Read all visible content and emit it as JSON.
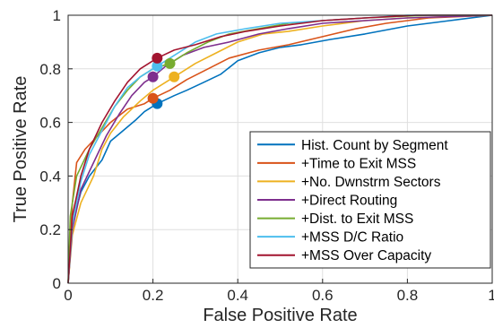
{
  "chart_data": {
    "type": "line",
    "xlabel": "False Positive Rate",
    "ylabel": "True Positive Rate",
    "xlim": [
      0,
      1
    ],
    "ylim": [
      0,
      1
    ],
    "xticks": [
      "0",
      "0.2",
      "0.4",
      "0.6",
      "0.8",
      "1"
    ],
    "yticks": [
      "0",
      "0.2",
      "0.4",
      "0.6",
      "0.8",
      "1"
    ],
    "grid": true,
    "legend_position": "bottom-right",
    "series": [
      {
        "name": "Hist. Count by Segment",
        "color": "#0072BD",
        "point": [
          0.21,
          0.67
        ],
        "values": [
          [
            0,
            0
          ],
          [
            0.01,
            0.22
          ],
          [
            0.03,
            0.34
          ],
          [
            0.05,
            0.4
          ],
          [
            0.08,
            0.46
          ],
          [
            0.1,
            0.53
          ],
          [
            0.13,
            0.57
          ],
          [
            0.16,
            0.61
          ],
          [
            0.18,
            0.64
          ],
          [
            0.21,
            0.67
          ],
          [
            0.25,
            0.7
          ],
          [
            0.28,
            0.72
          ],
          [
            0.32,
            0.75
          ],
          [
            0.36,
            0.78
          ],
          [
            0.4,
            0.83
          ],
          [
            0.45,
            0.86
          ],
          [
            0.5,
            0.88
          ],
          [
            0.55,
            0.89
          ],
          [
            0.62,
            0.91
          ],
          [
            0.7,
            0.93
          ],
          [
            0.8,
            0.96
          ],
          [
            0.9,
            0.98
          ],
          [
            1,
            1
          ]
        ]
      },
      {
        "name": "+Time to Exit MSS",
        "color": "#D95319",
        "point": [
          0.2,
          0.69
        ],
        "values": [
          [
            0,
            0
          ],
          [
            0.01,
            0.3
          ],
          [
            0.02,
            0.45
          ],
          [
            0.04,
            0.5
          ],
          [
            0.07,
            0.55
          ],
          [
            0.1,
            0.6
          ],
          [
            0.14,
            0.65
          ],
          [
            0.18,
            0.67
          ],
          [
            0.2,
            0.69
          ],
          [
            0.24,
            0.72
          ],
          [
            0.28,
            0.76
          ],
          [
            0.33,
            0.8
          ],
          [
            0.38,
            0.84
          ],
          [
            0.45,
            0.87
          ],
          [
            0.52,
            0.89
          ],
          [
            0.6,
            0.92
          ],
          [
            0.68,
            0.95
          ],
          [
            0.75,
            0.97
          ],
          [
            0.85,
            0.99
          ],
          [
            1,
            1
          ]
        ]
      },
      {
        "name": "+No. Dwnstrm Sectors",
        "color": "#EDB120",
        "point": [
          0.25,
          0.77
        ],
        "values": [
          [
            0,
            0
          ],
          [
            0.01,
            0.18
          ],
          [
            0.03,
            0.3
          ],
          [
            0.06,
            0.4
          ],
          [
            0.08,
            0.5
          ],
          [
            0.1,
            0.56
          ],
          [
            0.13,
            0.62
          ],
          [
            0.17,
            0.68
          ],
          [
            0.2,
            0.72
          ],
          [
            0.25,
            0.77
          ],
          [
            0.3,
            0.82
          ],
          [
            0.35,
            0.86
          ],
          [
            0.4,
            0.9
          ],
          [
            0.46,
            0.93
          ],
          [
            0.52,
            0.94
          ],
          [
            0.6,
            0.96
          ],
          [
            0.7,
            0.98
          ],
          [
            0.8,
            0.99
          ],
          [
            1,
            1
          ]
        ]
      },
      {
        "name": "+Direct Routing",
        "color": "#7E2F8E",
        "point": [
          0.2,
          0.77
        ],
        "values": [
          [
            0,
            0
          ],
          [
            0.01,
            0.2
          ],
          [
            0.03,
            0.35
          ],
          [
            0.06,
            0.45
          ],
          [
            0.09,
            0.55
          ],
          [
            0.12,
            0.63
          ],
          [
            0.15,
            0.7
          ],
          [
            0.18,
            0.75
          ],
          [
            0.2,
            0.77
          ],
          [
            0.23,
            0.81
          ],
          [
            0.27,
            0.85
          ],
          [
            0.32,
            0.88
          ],
          [
            0.38,
            0.9
          ],
          [
            0.45,
            0.93
          ],
          [
            0.52,
            0.95
          ],
          [
            0.6,
            0.97
          ],
          [
            0.7,
            0.98
          ],
          [
            0.8,
            0.99
          ],
          [
            1,
            1
          ]
        ]
      },
      {
        "name": "+Dist. to Exit MSS",
        "color": "#77AC30",
        "point": [
          0.24,
          0.82
        ],
        "values": [
          [
            0,
            0
          ],
          [
            0.005,
            0.25
          ],
          [
            0.02,
            0.4
          ],
          [
            0.05,
            0.5
          ],
          [
            0.08,
            0.58
          ],
          [
            0.11,
            0.66
          ],
          [
            0.14,
            0.72
          ],
          [
            0.17,
            0.77
          ],
          [
            0.2,
            0.8
          ],
          [
            0.24,
            0.82
          ],
          [
            0.28,
            0.86
          ],
          [
            0.33,
            0.9
          ],
          [
            0.38,
            0.93
          ],
          [
            0.45,
            0.95
          ],
          [
            0.52,
            0.97
          ],
          [
            0.6,
            0.98
          ],
          [
            0.7,
            0.99
          ],
          [
            0.85,
            1
          ],
          [
            1,
            1
          ]
        ]
      },
      {
        "name": "+MSS D/C Ratio",
        "color": "#4DBEEE",
        "point": [
          0.21,
          0.81
        ],
        "values": [
          [
            0,
            0
          ],
          [
            0.01,
            0.22
          ],
          [
            0.03,
            0.38
          ],
          [
            0.05,
            0.48
          ],
          [
            0.08,
            0.57
          ],
          [
            0.11,
            0.66
          ],
          [
            0.14,
            0.73
          ],
          [
            0.17,
            0.77
          ],
          [
            0.21,
            0.81
          ],
          [
            0.25,
            0.85
          ],
          [
            0.3,
            0.9
          ],
          [
            0.35,
            0.93
          ],
          [
            0.42,
            0.95
          ],
          [
            0.5,
            0.97
          ],
          [
            0.6,
            0.98
          ],
          [
            0.7,
            0.99
          ],
          [
            0.8,
            1
          ],
          [
            1,
            1
          ]
        ]
      },
      {
        "name": "+MSS Over Capacity",
        "color": "#A2142F",
        "point": [
          0.21,
          0.84
        ],
        "values": [
          [
            0,
            0
          ],
          [
            0.01,
            0.25
          ],
          [
            0.03,
            0.4
          ],
          [
            0.05,
            0.5
          ],
          [
            0.08,
            0.6
          ],
          [
            0.11,
            0.68
          ],
          [
            0.14,
            0.75
          ],
          [
            0.17,
            0.8
          ],
          [
            0.21,
            0.84
          ],
          [
            0.25,
            0.87
          ],
          [
            0.3,
            0.89
          ],
          [
            0.36,
            0.92
          ],
          [
            0.42,
            0.94
          ],
          [
            0.5,
            0.96
          ],
          [
            0.6,
            0.98
          ],
          [
            0.7,
            0.99
          ],
          [
            0.82,
            1
          ],
          [
            1,
            1
          ]
        ]
      }
    ]
  }
}
